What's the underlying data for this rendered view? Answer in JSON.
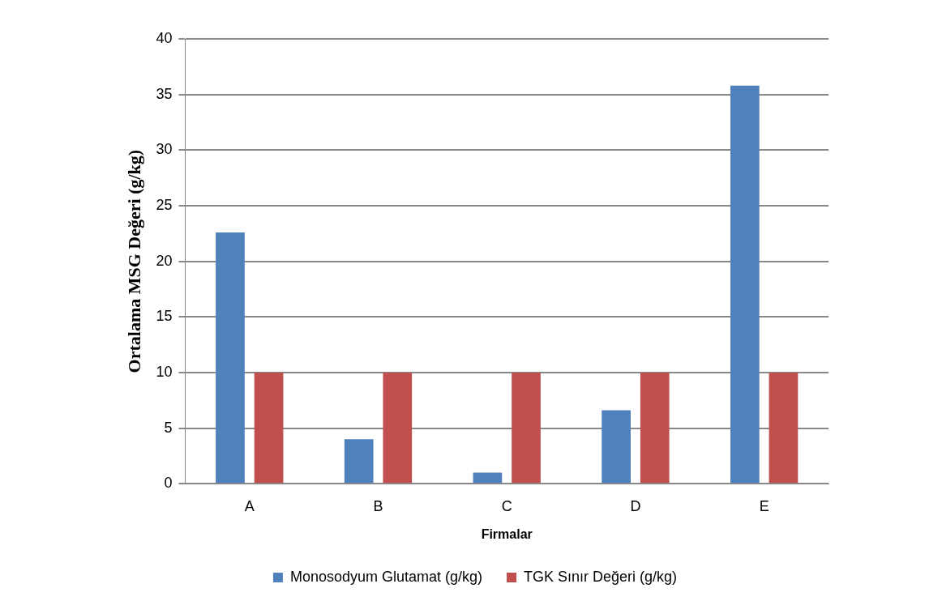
{
  "chart_data": {
    "type": "bar",
    "xlabel": "Firmalar",
    "ylabel": "Ortalama MSG Değeri (g/kg)",
    "categories": [
      "A",
      "B",
      "C",
      "D",
      "E"
    ],
    "series": [
      {
        "name": "Monosodyum Glutamat (g/kg)",
        "color": "#4f81bd",
        "values": [
          22.6,
          4.0,
          1.0,
          6.6,
          35.8
        ]
      },
      {
        "name": "TGK Sınır Değeri (g/kg)",
        "color": "#c0504d",
        "values": [
          10,
          10,
          10,
          10,
          10
        ]
      }
    ],
    "ylim": [
      0,
      40
    ],
    "yticks": [
      0,
      5,
      10,
      15,
      20,
      25,
      30,
      35,
      40
    ],
    "grid": "y",
    "legend": "bottom"
  }
}
